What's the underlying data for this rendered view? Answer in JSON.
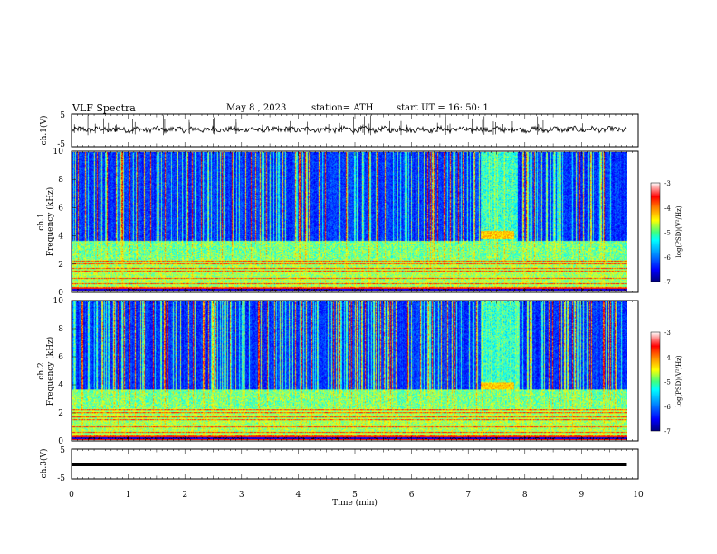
{
  "header": {
    "title": "VLF  Spectra",
    "date": "May 8  , 2023",
    "station": "station= ATH",
    "start": "start  UT  =    16: 50: 1"
  },
  "chart_data": [
    {
      "type": "line",
      "name": "ch1-waveform",
      "ylabel": "ch.1(V)",
      "ylim": [
        -5,
        5
      ],
      "yticks": [
        "5",
        "-5"
      ],
      "xlim": [
        0,
        10
      ],
      "description_values": {
        "x_end_min": 9.8
      }
    },
    {
      "type": "heatmap",
      "name": "ch1-spectrogram",
      "ylabel_line1": "ch.1",
      "ylabel_line2": "Frequency  (kHz)",
      "ylim": [
        0,
        10
      ],
      "yticks": [
        "0",
        "2",
        "4",
        "6",
        "8",
        "10"
      ],
      "xlim": [
        0,
        10
      ],
      "x_end_min": 9.8,
      "colorbar": {
        "label": "log(PSD)(V²/Hz)",
        "range": [
          -7,
          -3
        ],
        "ticks": [
          "-3",
          "-4",
          "-5",
          "-6",
          "-7"
        ]
      },
      "features": {
        "spherics_above_khz": 3.5,
        "strong_band_khz": 2.0,
        "transmitter_lines_khz": [
          0.3,
          0.6,
          1.0,
          1.5
        ],
        "event_window_min": [
          7.2,
          7.8
        ],
        "event_freq_khz": [
          3.8,
          4.4
        ]
      }
    },
    {
      "type": "heatmap",
      "name": "ch2-spectrogram",
      "ylabel_line1": "ch.2",
      "ylabel_line2": "Frequency  (kHz)",
      "ylim": [
        0,
        10
      ],
      "yticks": [
        "0",
        "2",
        "4",
        "6",
        "8",
        "10"
      ],
      "xlim": [
        0,
        10
      ],
      "x_end_min": 9.8,
      "colorbar": {
        "label": "log(PSD)(V²/Hz)",
        "range": [
          -7,
          -3
        ],
        "ticks": [
          "-3",
          "-4",
          "-5",
          "-6",
          "-7"
        ]
      },
      "features": {
        "spherics_above_khz": 3.5,
        "strong_band_khz": 2.0,
        "transmitter_lines_khz": [
          0.3,
          0.6,
          1.0,
          1.5
        ],
        "event_window_min": [
          7.2,
          7.8
        ],
        "event_freq_khz": [
          3.7,
          4.2
        ]
      }
    },
    {
      "type": "line",
      "name": "ch3-waveform",
      "ylabel": "ch.3(V)",
      "ylim": [
        -5,
        5
      ],
      "yticks": [
        "5",
        "-5"
      ],
      "xlim": [
        0,
        10
      ],
      "constant_value": -0.3,
      "x_end_min": 9.8
    }
  ],
  "xaxis": {
    "label": "Time  (min)",
    "ticks": [
      "0",
      "1",
      "2",
      "3",
      "4",
      "5",
      "6",
      "7",
      "8",
      "9",
      "10"
    ],
    "range": [
      0,
      10
    ]
  }
}
